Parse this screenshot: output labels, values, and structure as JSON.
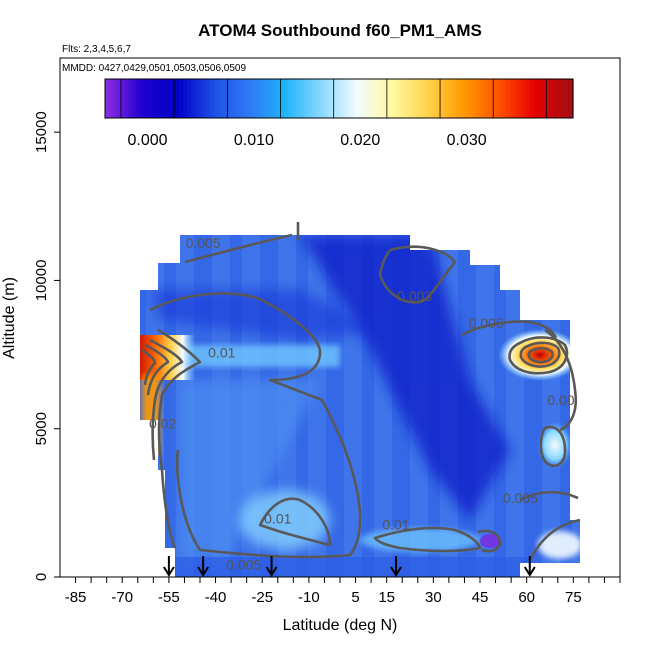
{
  "chart_data": {
    "type": "heatmap",
    "title": "ATOM4 Southbound f60_PM1_AMS",
    "flights_note": "Flts: 2,3,4,5,6,7",
    "dates_note": "MMDD: 0427,0429,0501,0503,0506,0509",
    "xlabel": "Latitude (deg N)",
    "ylabel": "Altitude (m)",
    "xlim": [
      -90,
      90
    ],
    "ylim": [
      0,
      17500
    ],
    "xticks": [
      -85,
      -70,
      -55,
      -40,
      -25,
      -10,
      5,
      15,
      30,
      45,
      60,
      75
    ],
    "xtick_labels": [
      "-85",
      "-70",
      "-55",
      "-40",
      "-25",
      "-10",
      "5",
      "15",
      "30",
      "45",
      "60",
      "75"
    ],
    "yticks": [
      0,
      5000,
      10000,
      15000
    ],
    "ytick_labels": [
      "0",
      "5000",
      "10000",
      "15000"
    ],
    "colorbar": {
      "range": [
        -0.004,
        0.04
      ],
      "ticks": [
        0.0,
        0.01,
        0.02,
        0.03
      ],
      "tick_labels": [
        "0.000",
        "0.010",
        "0.020",
        "0.030"
      ],
      "colors": [
        "#8a2be2",
        "#2000d0",
        "#0000c8",
        "#1e50e6",
        "#2f7af5",
        "#1fb4fa",
        "#8ad8ff",
        "#f2fbff",
        "#fff9a0",
        "#ffd24a",
        "#ff9a00",
        "#ff5000",
        "#e60000",
        "#a50f15"
      ]
    },
    "contour_labels": [
      {
        "text": "0.005",
        "lat": -44,
        "alt": 11100
      },
      {
        "text": "0.003",
        "lat": 24,
        "alt": 9300
      },
      {
        "text": "0.005",
        "lat": 47,
        "alt": 8400
      },
      {
        "text": "0.01",
        "lat": -38,
        "alt": 7400
      },
      {
        "text": "0.02",
        "lat": -57,
        "alt": 5000
      },
      {
        "text": "0.01",
        "lat": -20,
        "alt": 1800
      },
      {
        "text": "0.01",
        "lat": 18,
        "alt": 1600
      },
      {
        "text": "0.005",
        "lat": -31,
        "alt": 250
      },
      {
        "text": "0.005",
        "lat": 58,
        "alt": 2500
      },
      {
        "text": "0.00",
        "lat": 71,
        "alt": 5800
      }
    ],
    "flight_markers_lat": [
      -55,
      -44,
      -22,
      18,
      61
    ]
  }
}
